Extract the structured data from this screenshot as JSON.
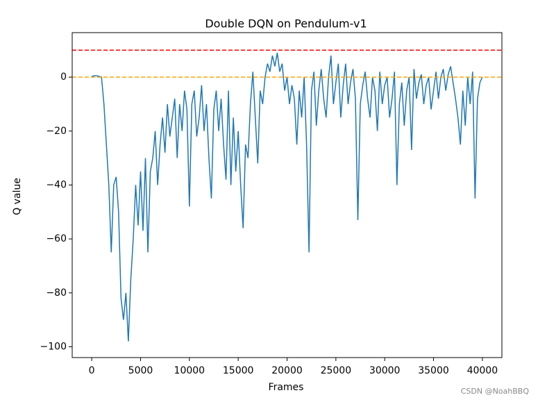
{
  "chart_data": {
    "type": "line",
    "title": "Double DQN on Pendulum-v1",
    "xlabel": "Frames",
    "ylabel": "Q value",
    "xlim": [
      -2000,
      42000
    ],
    "ylim": [
      -104,
      16.5
    ],
    "xticks": [
      0,
      5000,
      10000,
      15000,
      20000,
      25000,
      30000,
      35000,
      40000
    ],
    "yticks": [
      {
        "value": -100,
        "label": "−100"
      },
      {
        "value": -80,
        "label": "−80"
      },
      {
        "value": -60,
        "label": "−60"
      },
      {
        "value": -40,
        "label": "−40"
      },
      {
        "value": -20,
        "label": "−20"
      },
      0
    ],
    "hlines": [
      {
        "value": 10,
        "color": "#ff0000"
      },
      {
        "value": 0,
        "color": "#ffa500"
      }
    ],
    "watermark": "CSDN @NoahBBQ",
    "x": [
      0,
      250,
      500,
      750,
      1000,
      1250,
      1500,
      1750,
      2000,
      2250,
      2500,
      2750,
      3000,
      3250,
      3500,
      3750,
      4000,
      4250,
      4500,
      4750,
      5000,
      5250,
      5500,
      5750,
      6000,
      6250,
      6500,
      6750,
      7000,
      7250,
      7500,
      7750,
      8000,
      8250,
      8500,
      8750,
      9000,
      9250,
      9500,
      9750,
      10000,
      10250,
      10500,
      10750,
      11000,
      11250,
      11500,
      11750,
      12000,
      12250,
      12500,
      12750,
      13000,
      13250,
      13500,
      13750,
      14000,
      14250,
      14500,
      14750,
      15000,
      15250,
      15500,
      15750,
      16000,
      16250,
      16500,
      16750,
      17000,
      17250,
      17500,
      17750,
      18000,
      18250,
      18500,
      18750,
      19000,
      19250,
      19500,
      19750,
      20000,
      20250,
      20500,
      20750,
      21000,
      21250,
      21500,
      21750,
      22000,
      22250,
      22500,
      22750,
      23000,
      23250,
      23500,
      23750,
      24000,
      24250,
      24500,
      24750,
      25000,
      25250,
      25500,
      25750,
      26000,
      26250,
      26500,
      26750,
      27000,
      27250,
      27500,
      27750,
      28000,
      28250,
      28500,
      28750,
      29000,
      29250,
      29500,
      29750,
      30000,
      30250,
      30500,
      30750,
      31000,
      31250,
      31500,
      31750,
      32000,
      32250,
      32500,
      32750,
      33000,
      33250,
      33500,
      33750,
      34000,
      34250,
      34500,
      34750,
      35000,
      35250,
      35500,
      35750,
      36000,
      36250,
      36500,
      36750,
      37000,
      37250,
      37500,
      37750,
      38000,
      38250,
      38500,
      38750,
      39000,
      39250,
      39500,
      39750,
      40000
    ],
    "series": [
      {
        "name": null,
        "color": "#1f77b4",
        "values": [
          0.3,
          0.5,
          0.5,
          0.3,
          0,
          -10,
          -25,
          -40,
          -65,
          -40,
          -37,
          -50,
          -82,
          -90,
          -80,
          -98,
          -75,
          -60,
          -40,
          -55,
          -35,
          -57,
          -30,
          -65,
          -35,
          -30,
          -20,
          -40,
          -25,
          -15,
          -28,
          -10,
          -22,
          -15,
          -8,
          -30,
          -10,
          -20,
          -5,
          -12,
          -48,
          -10,
          -5,
          -22,
          -15,
          -3,
          -20,
          -10,
          -30,
          -45,
          -12,
          -5,
          -20,
          -8,
          -25,
          -38,
          -5,
          -40,
          -15,
          -35,
          -20,
          -40,
          -56,
          -25,
          -30,
          -10,
          2,
          -15,
          -32,
          -5,
          -10,
          0,
          5,
          2,
          8,
          4,
          9,
          2,
          5,
          -5,
          0,
          -10,
          -3,
          -8,
          -25,
          -5,
          -15,
          0,
          -25,
          -65,
          -5,
          2,
          -18,
          -5,
          3,
          -8,
          -15,
          0,
          8,
          -10,
          -2,
          5,
          -15,
          -3,
          5,
          -10,
          -2,
          3,
          -8,
          -53,
          -10,
          -3,
          2,
          -8,
          -15,
          0,
          -5,
          -20,
          2,
          -10,
          -3,
          0,
          -15,
          -8,
          2,
          -40,
          -10,
          -2,
          -18,
          -5,
          0,
          -27,
          3,
          -8,
          -2,
          1,
          -10,
          -3,
          0,
          -12,
          -5,
          2,
          -8,
          0,
          3,
          -5,
          1,
          4,
          -2,
          -8,
          -15,
          -25,
          -5,
          -18,
          0,
          -10,
          2,
          -45,
          -8,
          -2,
          0
        ]
      }
    ]
  }
}
